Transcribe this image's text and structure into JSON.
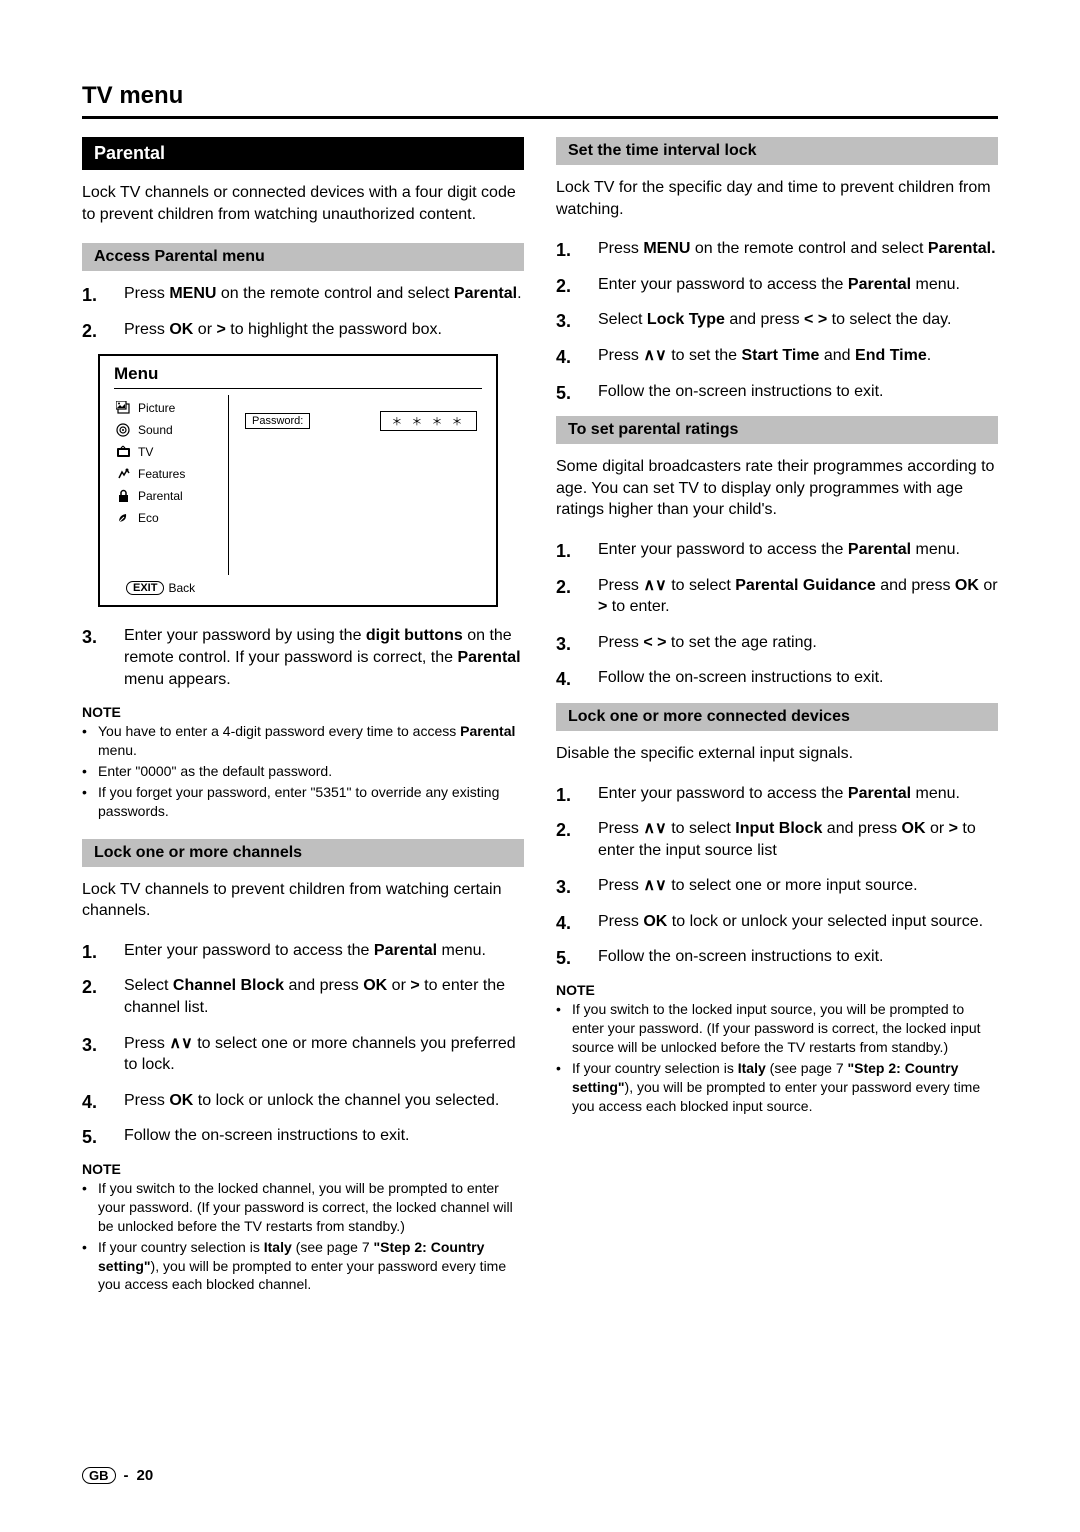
{
  "page_title": "TV menu",
  "footer": {
    "region": "GB",
    "sep": "-",
    "page": "20"
  },
  "left": {
    "parental_header": "Parental",
    "parental_intro": "Lock TV channels or connected devices with a four digit code to prevent children from watching unauthorized content.",
    "access_header": "Access Parental menu",
    "access_steps_pre": [
      "Press <b>MENU</b> on the remote control and select <b>Parental</b>.",
      "Press <b>OK</b> or <b>&gt;</b> to highlight the password box."
    ],
    "menu": {
      "title": "Menu",
      "items": [
        "Picture",
        "Sound",
        "TV",
        "Features",
        "Parental",
        "Eco"
      ],
      "pw_label": "Password:",
      "pw_value": "＊ ＊ ＊ ＊",
      "exit": "EXIT",
      "back": "Back"
    },
    "access_steps_post": [
      "Enter your password by using the <b>digit buttons</b> on the remote control. If your password is correct, the <b>Parental</b> menu appears."
    ],
    "note1_label": "NOTE",
    "note1_items": [
      "You have to enter a 4-digit password every time to access <b>Parental</b> menu.",
      "Enter \"0000\" as the default password.",
      "If you forget your password, enter \"5351\" to override any existing passwords."
    ],
    "lock_ch_header": "Lock one or more channels",
    "lock_ch_intro": "Lock TV channels to prevent children from watching certain channels.",
    "lock_ch_steps": [
      "Enter your password to access the <b>Parental</b> menu.",
      "Select <b>Channel Block</b> and press <b>OK</b> or <b>&gt;</b> to enter the channel list.",
      "Press <span class='updown'>∧∨</span> to select one or more channels you preferred to lock.",
      "Press <b>OK</b> to lock or unlock the channel you selected.",
      "Follow the on-screen instructions to exit."
    ],
    "note2_label": "NOTE",
    "note2_items": [
      "If you switch to the locked channel, you will be prompted to enter your password. (If your password is correct, the locked channel will be unlocked before the TV restarts from standby.)",
      "If your country selection is <b>Italy</b> (see page 7 <b>\"Step 2: Country setting\"</b>), you will be prompted to enter your password every time you access each blocked channel."
    ]
  },
  "right": {
    "time_header": "Set the time interval lock",
    "time_intro": "Lock TV for the specific day and time to prevent children from watching.",
    "time_steps": [
      "Press <b>MENU</b> on the remote control and select <b>Parental.</b>",
      "Enter your password to access the <b>Parental</b> menu.",
      "Select <b>Lock Type</b> and press <b>&lt; &gt;</b> to select the day.",
      "Press <span class='updown'>∧∨</span> to set the <b>Start Time</b> and <b>End Time</b>.",
      "Follow the on-screen instructions to exit."
    ],
    "ratings_header": "To set parental ratings",
    "ratings_intro": "Some digital broadcasters rate their programmes according to age. You can set TV to display only programmes with age ratings higher than your child's.",
    "ratings_steps": [
      "Enter your password to access the <b>Parental</b> menu.",
      "Press <span class='updown'>∧∨</span> to select <b>Parental Guidance</b> and press <b>OK</b> or <b>&gt;</b> to enter.",
      "Press <b>&lt; &gt;</b> to set the age rating.",
      "Follow the on-screen instructions to exit."
    ],
    "devices_header": "Lock one or more connected devices",
    "devices_intro": "Disable the specific external input signals.",
    "devices_steps": [
      "Enter your password to access the <b>Parental</b> menu.",
      "Press <span class='updown'>∧∨</span> to select <b>Input Block</b> and press <b>OK</b> or <b>&gt;</b> to enter the input source list",
      "Press <span class='updown'>∧∨</span> to select one or more input source.",
      "Press <b>OK</b> to lock or unlock your selected input source.",
      "Follow the on-screen instructions to exit."
    ],
    "note3_label": "NOTE",
    "note3_items": [
      "If you switch to the locked input source, you will be prompted to enter your password. (If your password is correct, the locked input source will be unlocked before the TV restarts from standby.)",
      "If your country selection is <b>Italy</b> (see page 7 <b>\"Step 2: Country setting\"</b>), you will be prompted to enter your password every time you access each blocked input source."
    ]
  }
}
